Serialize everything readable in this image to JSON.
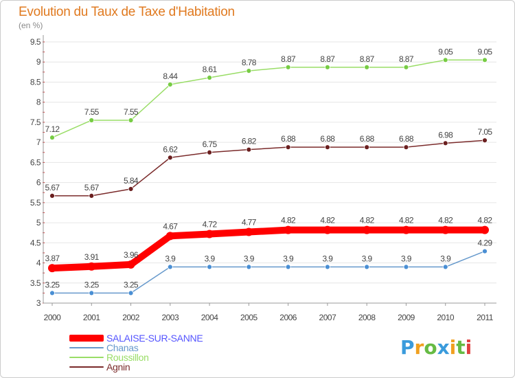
{
  "header": {
    "title": "Evolution du Taux de Taxe d'Habitation",
    "subtitle": "(en %)"
  },
  "chart_data": {
    "type": "line",
    "x": [
      "2000",
      "2001",
      "2002",
      "2003",
      "2004",
      "2005",
      "2006",
      "2007",
      "2008",
      "2009",
      "2010",
      "2011"
    ],
    "ylim": [
      3,
      9.5
    ],
    "yticks": [
      "3",
      "3.5",
      "4",
      "4.5",
      "5",
      "5.5",
      "6",
      "6.5",
      "7",
      "7.5",
      "8",
      "8.5",
      "9",
      "9.5"
    ],
    "grid": "horizontal",
    "legend_position": "bottom-left",
    "series": [
      {
        "name": "SALAISE-SUR-SANNE",
        "color": "#ff0000",
        "label_color": "#5555ff",
        "marker_fill": "#ff0000",
        "values": [
          3.87,
          3.91,
          3.96,
          4.67,
          4.72,
          4.77,
          4.82,
          4.82,
          4.82,
          4.82,
          4.82,
          4.82
        ],
        "labels": [
          "3.87",
          "3.91",
          "3.96",
          "4.67",
          "4.72",
          "4.77",
          "4.82",
          "4.82",
          "4.82",
          "4.82",
          "4.82",
          "4.82"
        ]
      },
      {
        "name": "Chanas",
        "color": "#6699cc",
        "label_color": "#6699cc",
        "marker_fill": "#4a8fd4",
        "values": [
          3.25,
          3.25,
          3.25,
          3.9,
          3.9,
          3.9,
          3.9,
          3.9,
          3.9,
          3.9,
          3.9,
          4.29
        ],
        "labels": [
          "3.25",
          "3.25",
          "3.25",
          "3.9",
          "3.9",
          "3.9",
          "3.9",
          "3.9",
          "3.9",
          "3.9",
          "3.9",
          "4.29"
        ]
      },
      {
        "name": "Roussillon",
        "color": "#99dd66",
        "label_color": "#99dd66",
        "marker_fill": "#77cc44",
        "values": [
          7.12,
          7.55,
          7.55,
          8.44,
          8.61,
          8.78,
          8.87,
          8.87,
          8.87,
          8.87,
          9.05,
          9.05
        ],
        "labels": [
          "7.12",
          "7.55",
          "7.55",
          "8.44",
          "8.61",
          "8.78",
          "8.87",
          "8.87",
          "8.87",
          "8.87",
          "9.05",
          "9.05"
        ]
      },
      {
        "name": "Agnin",
        "color": "#7a2a2a",
        "label_color": "#7a2a2a",
        "marker_fill": "#6a1f1f",
        "values": [
          5.67,
          5.67,
          5.84,
          6.62,
          6.75,
          6.82,
          6.88,
          6.88,
          6.88,
          6.88,
          6.98,
          7.05
        ],
        "labels": [
          "5.67",
          "5.67",
          "5.84",
          "6.62",
          "6.75",
          "6.82",
          "6.88",
          "6.88",
          "6.88",
          "6.88",
          "6.98",
          "7.05"
        ]
      }
    ]
  },
  "logo": {
    "letters": [
      "P",
      "r",
      "o",
      "x",
      "i",
      "t",
      "i"
    ],
    "colors": [
      "#3a9bdc",
      "#f0a020",
      "#66bb44",
      "#3a9bdc",
      "#f0a020",
      "#66bb44",
      "#e04040"
    ]
  }
}
